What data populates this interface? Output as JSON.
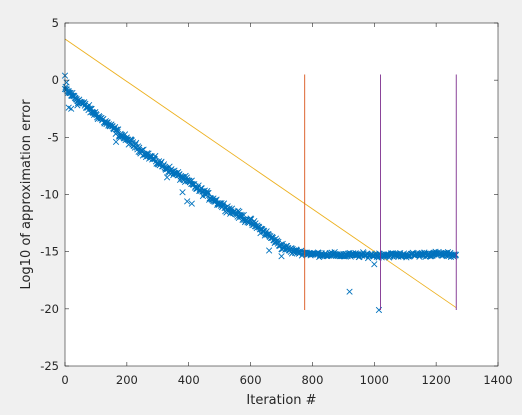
{
  "figure": {
    "background": "#f0f0f0",
    "axes_background": "#ffffff"
  },
  "chart_data": {
    "type": "scatter",
    "title": "",
    "xlabel": "Iteration #",
    "ylabel": "Log10 of approximation error",
    "xlim": [
      0,
      1400
    ],
    "ylim": [
      -25,
      5
    ],
    "xticks": [
      0,
      200,
      400,
      600,
      800,
      1000,
      1200,
      1400
    ],
    "yticks": [
      -25,
      -20,
      -15,
      -10,
      -5,
      0,
      5
    ],
    "xtick_labels": [
      "0",
      "200",
      "400",
      "600",
      "800",
      "1000",
      "1200",
      "1400"
    ],
    "ytick_labels": [
      "-25",
      "-20",
      "-15",
      "-10",
      "-5",
      "0",
      "5"
    ],
    "grid": false,
    "legend": "none",
    "error_trend": {
      "marker": "x",
      "color": "#0072bd",
      "x": [
        0,
        100,
        200,
        300,
        400,
        500,
        600,
        650,
        700,
        730,
        770,
        800,
        900,
        1000,
        1100,
        1200,
        1265
      ],
      "y": [
        -0.8,
        -3.0,
        -5.2,
        -7.2,
        -8.9,
        -10.8,
        -12.4,
        -13.4,
        -14.5,
        -14.9,
        -15.1,
        -15.2,
        -15.3,
        -15.3,
        -15.3,
        -15.2,
        -15.3
      ]
    },
    "outliers": {
      "marker": "x",
      "color": "#0072bd",
      "points": [
        [
          0,
          0.4
        ],
        [
          5,
          -0.2
        ],
        [
          12,
          -2.4
        ],
        [
          20,
          -2.5
        ],
        [
          40,
          -2.2
        ],
        [
          165,
          -5.4
        ],
        [
          330,
          -8.5
        ],
        [
          380,
          -9.8
        ],
        [
          395,
          -10.6
        ],
        [
          410,
          -10.8
        ],
        [
          660,
          -14.9
        ],
        [
          700,
          -15.4
        ],
        [
          920,
          -18.5
        ],
        [
          1015,
          -20.1
        ],
        [
          1000,
          -16.1
        ]
      ]
    },
    "fit_line": {
      "color": "#edb120",
      "x": [
        0,
        1265
      ],
      "y": [
        3.6,
        -19.9
      ]
    },
    "vertical_lines": [
      {
        "x": 775,
        "y": [
          -20.1,
          0.5
        ],
        "color": "#d95319"
      },
      {
        "x": 1020,
        "y": [
          -20.1,
          0.5
        ],
        "color": "#7e2f8e"
      },
      {
        "x": 1265,
        "y": [
          -20.1,
          0.5
        ],
        "color": "#7e2f8e"
      }
    ]
  }
}
